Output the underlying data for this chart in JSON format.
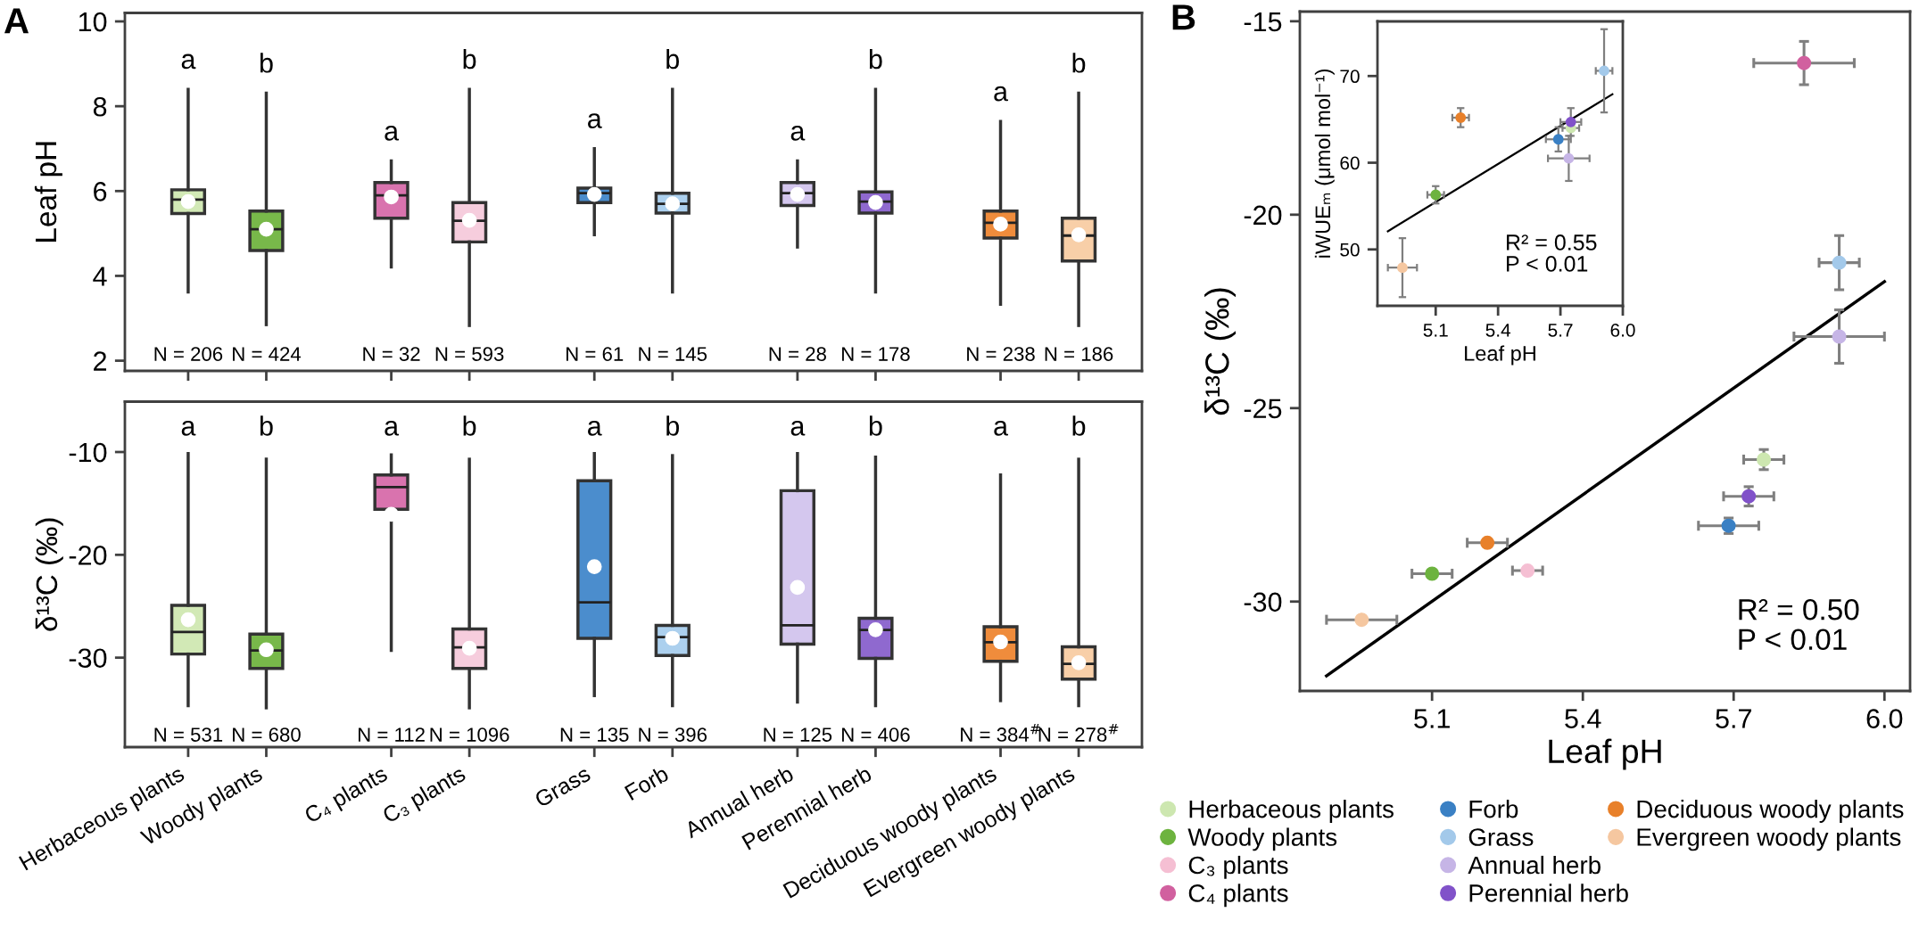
{
  "chart_data": [
    {
      "type": "box",
      "title": "A",
      "ylabel": "Leaf pH",
      "tick_labels": "y",
      "categories": [
        null,
        null,
        null,
        null,
        null,
        null,
        null,
        null,
        null,
        null
      ],
      "colors": [
        "#d2e9b6",
        "#78b84a",
        "#d973ae",
        "#f6cddd",
        "#4b8dcd",
        "#acd0ee",
        "#d4c7ee",
        "#8f69cf",
        "#ef8c3c",
        "#f8cfa8"
      ],
      "boxes": [
        {
          "low": 3.62,
          "q1": 5.47,
          "median": 5.8,
          "q3": 6.03,
          "high": 8.4,
          "mean": 5.75
        },
        {
          "low": 2.85,
          "q1": 4.6,
          "median": 5.1,
          "q3": 5.53,
          "high": 8.31,
          "mean": 5.1
        },
        {
          "low": 4.21,
          "q1": 5.36,
          "median": 5.9,
          "q3": 6.2,
          "high": 6.71,
          "mean": 5.86
        },
        {
          "low": 2.83,
          "q1": 4.8,
          "median": 5.3,
          "q3": 5.73,
          "high": 8.4,
          "mean": 5.31
        },
        {
          "low": 4.97,
          "q1": 5.73,
          "median": 5.95,
          "q3": 6.07,
          "high": 7.0,
          "mean": 5.92
        },
        {
          "low": 3.62,
          "q1": 5.48,
          "median": 5.7,
          "q3": 5.95,
          "high": 8.4,
          "mean": 5.7
        },
        {
          "low": 4.68,
          "q1": 5.66,
          "median": 5.95,
          "q3": 6.2,
          "high": 6.71,
          "mean": 5.92
        },
        {
          "low": 3.62,
          "q1": 5.48,
          "median": 5.75,
          "q3": 5.98,
          "high": 8.4,
          "mean": 5.73
        },
        {
          "low": 3.33,
          "q1": 4.89,
          "median": 5.25,
          "q3": 5.53,
          "high": 7.64,
          "mean": 5.22
        },
        {
          "low": 2.83,
          "q1": 4.35,
          "median": 4.95,
          "q3": 5.36,
          "high": 8.31,
          "mean": 4.97
        }
      ],
      "ylim": [
        1.76,
        10.2
      ],
      "yticks": [
        2,
        4,
        6,
        8,
        10
      ],
      "annotations": [
        "a",
        "b",
        "a",
        "b",
        "a",
        "b",
        "a",
        "b",
        "a",
        "b",
        "N = 206",
        "N = 424",
        "N = 32",
        "N = 593",
        "N = 61",
        "N = 145",
        "N = 28",
        "N = 178",
        "N = 238",
        "N = 186"
      ]
    },
    {
      "type": "box",
      "ylabel": "δ¹³C (‰)",
      "categories": [
        "Herbaceous plants",
        "Woody plants",
        "C₄ plants",
        "C₃ plants",
        "Grass",
        "Forb",
        "Annual herb",
        "Perennial herb",
        "Deciduous woody plants",
        "Evergreen woody plants"
      ],
      "colors": [
        "#d2e9b6",
        "#78b84a",
        "#d973ae",
        "#f6cddd",
        "#4b8dcd",
        "#acd0ee",
        "#d4c7ee",
        "#8f69cf",
        "#ef8c3c",
        "#f8cfa8"
      ],
      "boxes": [
        {
          "low": -34.67,
          "q1": -29.65,
          "median": -27.5,
          "q3": -24.91,
          "high": -10.14,
          "mean": -26.31
        },
        {
          "low": -34.88,
          "q1": -31.05,
          "median": -29.3,
          "q3": -27.7,
          "high": -10.7,
          "mean": -29.23
        },
        {
          "low": -29.3,
          "q1": -15.57,
          "median": -13.41,
          "q3": -12.23,
          "high": -10.28,
          "mean": -16.06
        },
        {
          "low": -34.88,
          "q1": -31.05,
          "median": -29.0,
          "q3": -27.21,
          "high": -10.7,
          "mean": -29.09
        },
        {
          "low": -33.69,
          "q1": -28.12,
          "median": -24.63,
          "q3": -12.79,
          "high": -10.14,
          "mean": -21.15
        },
        {
          "low": -34.67,
          "q1": -29.79,
          "median": -28.0,
          "q3": -26.86,
          "high": -10.35,
          "mean": -28.12
        },
        {
          "low": -34.32,
          "q1": -28.68,
          "median": -26.86,
          "q3": -13.76,
          "high": -10.14,
          "mean": -23.17
        },
        {
          "low": -34.67,
          "q1": -30.07,
          "median": -27.3,
          "q3": -26.17,
          "high": -10.49,
          "mean": -27.28
        },
        {
          "low": -34.18,
          "q1": -30.35,
          "median": -28.5,
          "q3": -27.0,
          "high": -12.23,
          "mean": -28.47
        },
        {
          "low": -34.67,
          "q1": -32.09,
          "median": -30.6,
          "q3": -28.95,
          "high": -10.7,
          "mean": -30.49
        }
      ],
      "ylim": [
        -38.7,
        -5.1
      ],
      "yticks": [
        -30,
        -20,
        -10
      ],
      "annotations": [
        "a",
        "b",
        "a",
        "b",
        "a",
        "b",
        "a",
        "b",
        "a",
        "b",
        "N = 531",
        "N = 680",
        "N = 112",
        "N = 1096",
        "N = 135",
        "N = 396",
        "N = 125",
        "N = 406",
        "N = 384$^{#}$",
        "N = 278$^{#}$"
      ]
    },
    {
      "type": "scatter",
      "title": "B",
      "xlabel": "Leaf pH",
      "ylabel": "δ¹³C (‰)",
      "marker": "circle",
      "legend": "bottom",
      "xlim": [
        4.837,
        6.051
      ],
      "ylim": [
        -32.31,
        -14.75
      ],
      "xticks": [
        5.1,
        5.4,
        5.7,
        {
          "value": 6.0,
          "label": "6.0"
        }
      ],
      "yticks": [
        -30,
        -25,
        -20,
        -15
      ],
      "series": [
        {
          "name": "Herbaceous plants",
          "color": "#cde7b0",
          "x": [
            5.76
          ],
          "values": [
            -26.33
          ],
          "xerrors": [
            0.04
          ],
          "errors": [
            0.26
          ]
        },
        {
          "name": "Woody plants",
          "color": "#6db33f",
          "x": [
            5.1
          ],
          "values": [
            -29.28
          ],
          "xerrors": [
            0.04
          ],
          "errors": [
            null
          ]
        },
        {
          "name": "C₃ plants",
          "color": "#f5bfd3",
          "x": [
            5.29
          ],
          "values": [
            -29.2
          ],
          "xerrors": [
            0.03
          ],
          "errors": [
            null
          ]
        },
        {
          "name": "C₄ plants",
          "color": "#d1609f",
          "x": [
            5.84
          ],
          "values": [
            -16.08
          ],
          "xerrors": [
            0.1
          ],
          "errors": [
            0.56
          ]
        },
        {
          "name": "Forb",
          "color": "#3a80c4",
          "x": [
            5.69
          ],
          "values": [
            -28.04
          ],
          "xerrors": [
            0.06
          ],
          "errors": [
            0.2
          ]
        },
        {
          "name": "Grass",
          "color": "#a3c9ea",
          "x": [
            5.91
          ],
          "values": [
            -21.24
          ],
          "xerrors": [
            0.04
          ],
          "errors": [
            0.7
          ]
        },
        {
          "name": "Annual herb",
          "color": "#c6b5e6",
          "x": [
            5.91
          ],
          "values": [
            -23.15
          ],
          "xerrors": [
            0.09
          ],
          "errors": [
            0.69
          ]
        },
        {
          "name": "Perennial herb",
          "color": "#8152c9",
          "x": [
            5.73
          ],
          "values": [
            -27.28
          ],
          "xerrors": [
            0.05
          ],
          "errors": [
            0.25
          ]
        },
        {
          "name": "Deciduous woody plants",
          "color": "#e8802a",
          "x": [
            5.21
          ],
          "values": [
            -28.48
          ],
          "xerrors": [
            0.04
          ],
          "errors": [
            null
          ]
        },
        {
          "name": "Evergreen woody plants",
          "color": "#f5c7a0",
          "x": [
            4.96
          ],
          "values": [
            -30.47
          ],
          "xerrors": [
            0.07
          ],
          "errors": [
            null
          ]
        },
        {
          "type": "line",
          "marker": "none",
          "color": "#000000",
          "x": [
            4.89,
            6.0
          ],
          "values": [
            -31.92,
            -21.73
          ]
        }
      ],
      "annotations": [
        "R² = 0.50",
        "P < 0.01"
      ]
    },
    {
      "type": "scatter",
      "xlabel": "Leaf pH",
      "ylabel": "iWUEₘ (μmol mol⁻¹)",
      "marker": "circle",
      "xlim": [
        4.82,
        6.0
      ],
      "ylim": [
        43.5,
        76.3
      ],
      "xticks": [
        5.1,
        5.4,
        5.7,
        {
          "value": 6.0,
          "label": "6.0"
        }
      ],
      "yticks": [
        50,
        60,
        70
      ],
      "series": [
        {
          "type": "line",
          "marker": "none",
          "color": "#000000",
          "x": [
            4.87,
            5.95
          ],
          "values": [
            52.1,
            67.9
          ]
        },
        {
          "color": "#cde7b0",
          "x": [
            5.75
          ],
          "values": [
            64.0
          ],
          "xerrors": [
            0.04
          ],
          "errors": [
            null
          ]
        },
        {
          "color": "#6db33f",
          "x": [
            5.1
          ],
          "values": [
            56.3
          ],
          "xerrors": [
            0.04
          ],
          "errors": [
            1.0
          ]
        },
        {
          "color": "#3a80c4",
          "x": [
            5.69
          ],
          "values": [
            62.7
          ],
          "xerrors": [
            0.06
          ],
          "errors": [
            1.4
          ]
        },
        {
          "color": "#a3c9ea",
          "x": [
            5.91
          ],
          "values": [
            70.6
          ],
          "xerrors": [
            0.04
          ],
          "errors": [
            4.8
          ]
        },
        {
          "color": "#c6b5e6",
          "x": [
            5.74
          ],
          "values": [
            60.5
          ],
          "xerrors": [
            0.1
          ],
          "errors": [
            2.6
          ]
        },
        {
          "color": "#8152c9",
          "x": [
            5.75
          ],
          "values": [
            64.7
          ],
          "xerrors": [
            0.05
          ],
          "errors": [
            1.6
          ]
        },
        {
          "color": "#e8802a",
          "x": [
            5.22
          ],
          "values": [
            65.2
          ],
          "xerrors": [
            0.04
          ],
          "errors": [
            1.1
          ]
        },
        {
          "color": "#f5c7a0",
          "x": [
            4.94
          ],
          "values": [
            47.9
          ],
          "xerrors": [
            0.07
          ],
          "errors": [
            3.4
          ]
        }
      ],
      "annotations": [
        "R² = 0.55",
        "P < 0.01"
      ]
    }
  ]
}
